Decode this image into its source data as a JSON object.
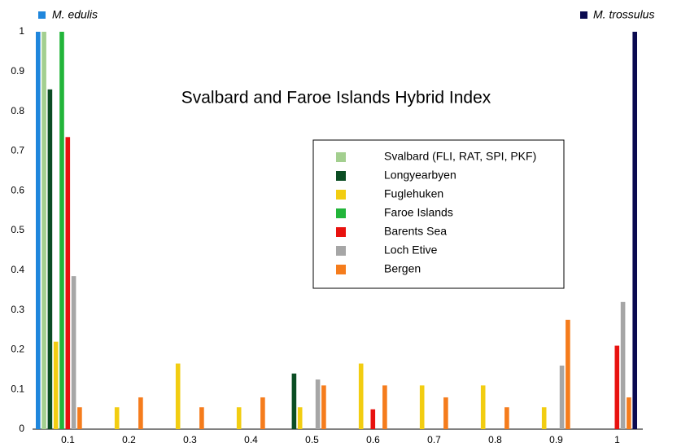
{
  "chart_data": {
    "type": "bar",
    "title": "Svalbard and Faroe Islands Hybrid Index",
    "categories": [
      "0.1",
      "0.2",
      "0.3",
      "0.4",
      "0.5",
      "0.6",
      "0.7",
      "0.8",
      "0.9",
      "1"
    ],
    "series": [
      {
        "name": "M. edulis",
        "color": "#1f86dc",
        "values": [
          1,
          0,
          0,
          0,
          0,
          0,
          0,
          0,
          0,
          0
        ]
      },
      {
        "name": "Svalbard (FLI, RAT, SPI, PKF)",
        "color": "#a3cf8f",
        "values": [
          1,
          0,
          0,
          0,
          0,
          0,
          0,
          0,
          0,
          0
        ]
      },
      {
        "name": "Longyearbyen",
        "color": "#0b4d23",
        "values": [
          0.855,
          0,
          0,
          0,
          0.14,
          0,
          0,
          0,
          0,
          0
        ]
      },
      {
        "name": "Fuglehuken",
        "color": "#f2cd11",
        "values": [
          0.22,
          0.055,
          0.165,
          0.055,
          0.055,
          0.165,
          0.11,
          0.11,
          0.055,
          0
        ]
      },
      {
        "name": "Faroe Islands",
        "color": "#22b53a",
        "values": [
          1,
          0,
          0,
          0,
          0,
          0,
          0,
          0,
          0,
          0
        ]
      },
      {
        "name": "Barents Sea",
        "color": "#e8120f",
        "values": [
          0.735,
          0,
          0,
          0,
          0,
          0.05,
          0,
          0,
          0,
          0.21
        ]
      },
      {
        "name": "Loch Etive",
        "color": "#a6a6a6",
        "values": [
          0.385,
          0,
          0,
          0,
          0.125,
          0,
          0,
          0,
          0.16,
          0.32
        ]
      },
      {
        "name": "Bergen",
        "color": "#f57c1c",
        "values": [
          0.055,
          0.08,
          0.055,
          0.08,
          0.11,
          0.11,
          0.08,
          0.055,
          0.275,
          0.08
        ]
      },
      {
        "name": "M. trossulus",
        "color": "#0a0a50",
        "values": [
          0,
          0,
          0,
          0,
          0,
          0,
          0,
          0,
          0,
          1
        ]
      }
    ],
    "ylim": [
      0,
      1
    ],
    "yticks": [
      0,
      0.1,
      0.2,
      0.3,
      0.4,
      0.5,
      0.6,
      0.7,
      0.8,
      0.9,
      1
    ],
    "grid": false
  }
}
